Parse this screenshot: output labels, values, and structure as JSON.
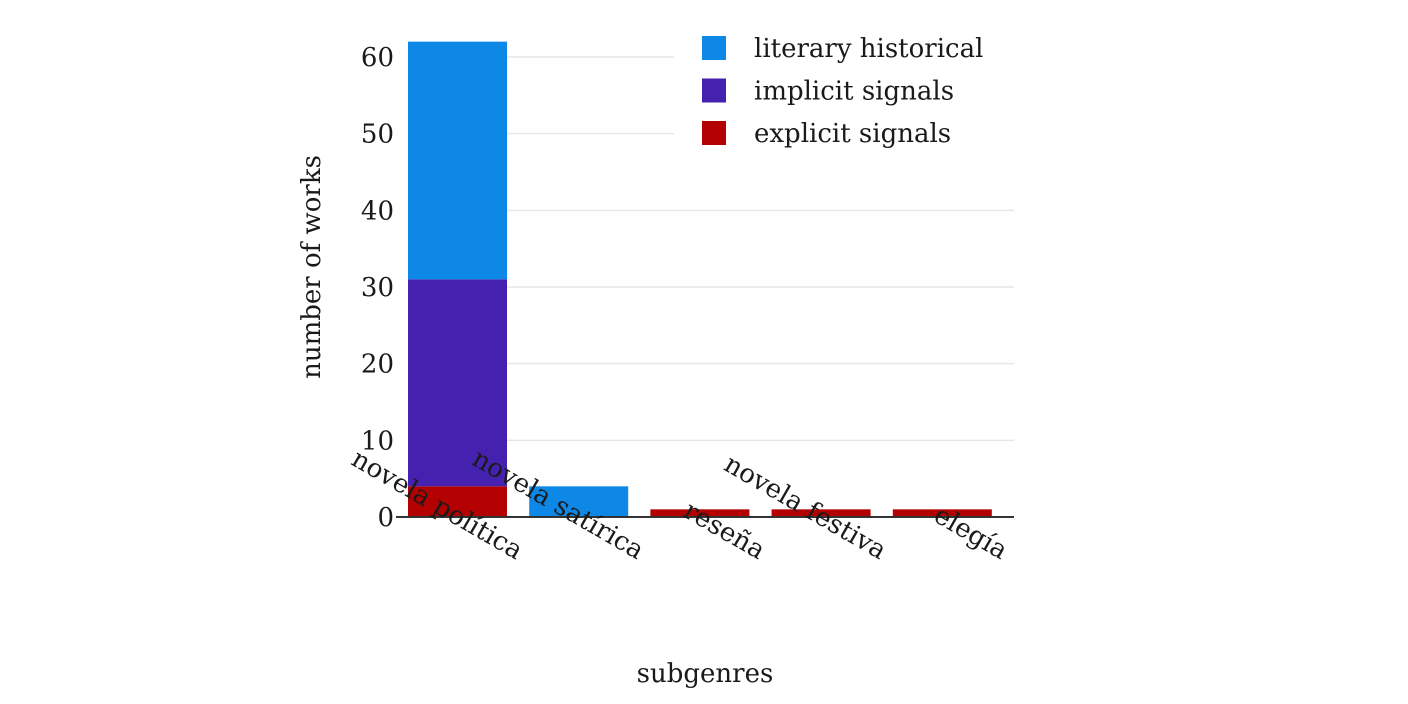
{
  "chart_data": {
    "type": "bar",
    "stacked": true,
    "categories": [
      "novela política",
      "novela satírica",
      "reseña",
      "novela festiva",
      "elegía"
    ],
    "series": [
      {
        "name": "explicit signals",
        "color": "#b30000",
        "values": [
          4,
          0,
          1,
          1,
          1
        ]
      },
      {
        "name": "implicit signals",
        "color": "#4421af",
        "values": [
          27,
          0,
          0,
          0,
          0
        ]
      },
      {
        "name": "literary historical",
        "color": "#0d88e6",
        "values": [
          31,
          4,
          0,
          0,
          0
        ]
      }
    ],
    "legend_order": [
      "literary historical",
      "implicit signals",
      "explicit signals"
    ],
    "xlabel": "subgenres",
    "ylabel": "number of works",
    "ylim": [
      0,
      62
    ],
    "yticks": [
      0,
      10,
      20,
      30,
      40,
      50,
      60
    ],
    "grid": "horizontal",
    "legend_position": "top-right"
  }
}
